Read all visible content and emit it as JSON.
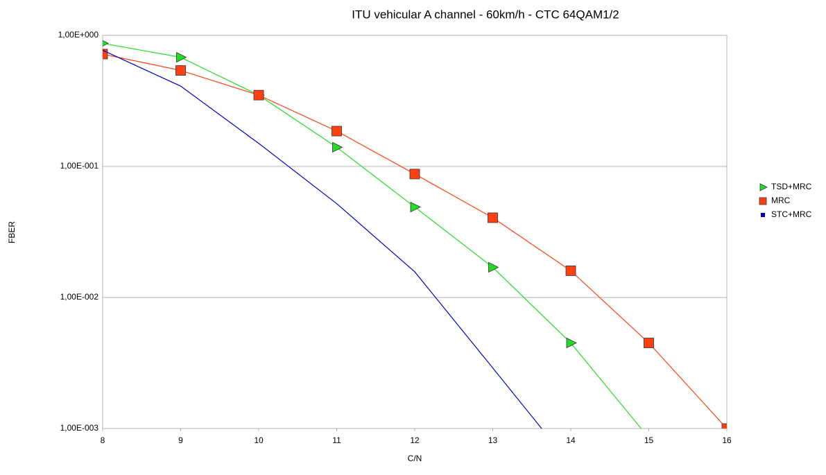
{
  "chart_data": {
    "type": "line",
    "title": "ITU vehicular A channel - 60km/h - CTC 64QAM1/2",
    "x_label": "C/N",
    "y_label": "FBER",
    "x": [
      8,
      9,
      10,
      11,
      12,
      13,
      14,
      15,
      16
    ],
    "series": [
      {
        "name": "TSD+MRC",
        "color": "#22dd22",
        "marker": "triangle",
        "values": [
          0.87,
          0.68,
          0.35,
          0.14,
          0.049,
          0.017,
          0.0045,
          0.00085,
          null
        ]
      },
      {
        "name": "MRC",
        "color": "#ff4010",
        "marker": "square",
        "values": [
          0.72,
          0.54,
          0.35,
          0.186,
          0.0875,
          0.0406,
          0.016,
          0.0045,
          0.001
        ]
      },
      {
        "name": "STC+MRC",
        "color": "#0000cc",
        "marker": "none",
        "values": [
          0.77,
          0.41,
          0.15,
          0.052,
          0.0157,
          0.0029,
          0.00053,
          null,
          null
        ]
      }
    ],
    "xlim": [
      8,
      16
    ],
    "xticks": [
      8,
      9,
      10,
      11,
      12,
      13,
      14,
      15,
      16
    ],
    "ylim": [
      0.001,
      1
    ],
    "log_y": true,
    "yticks": [
      {
        "value": 0.001,
        "label": "1,00E-003"
      },
      {
        "value": 0.01,
        "label": "1,00E-002"
      },
      {
        "value": 0.1,
        "label": "1,00E-001"
      },
      {
        "value": 1,
        "label": "1,00E+000"
      }
    ],
    "grid": true,
    "legend": "right"
  }
}
